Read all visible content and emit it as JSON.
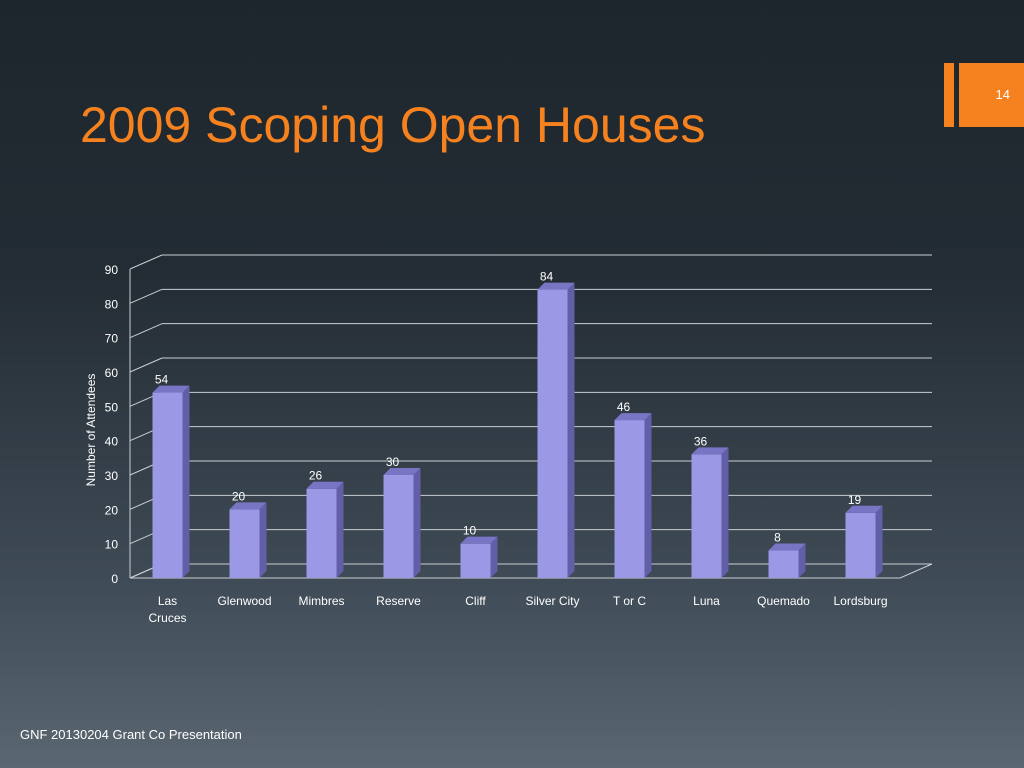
{
  "slide": {
    "title": "2009 Scoping Open Houses",
    "page_number": "14",
    "footer": "GNF 20130204 Grant Co Presentation",
    "accent_color": "#f5821f"
  },
  "chart_data": {
    "type": "bar",
    "title": "",
    "xlabel": "",
    "ylabel": "Number of Attendees",
    "categories": [
      "Las Cruces",
      "Glenwood",
      "Mimbres",
      "Reserve",
      "Cliff",
      "Silver City",
      "T or C",
      "Luna",
      "Quemado",
      "Lordsburg"
    ],
    "values": [
      54,
      20,
      26,
      30,
      10,
      84,
      46,
      36,
      8,
      19
    ],
    "ylim": [
      0,
      90
    ],
    "yticks": [
      0,
      10,
      20,
      30,
      40,
      50,
      60,
      70,
      80,
      90
    ],
    "grid": true,
    "bar_color": "#9b98e6",
    "data_labels": true
  }
}
